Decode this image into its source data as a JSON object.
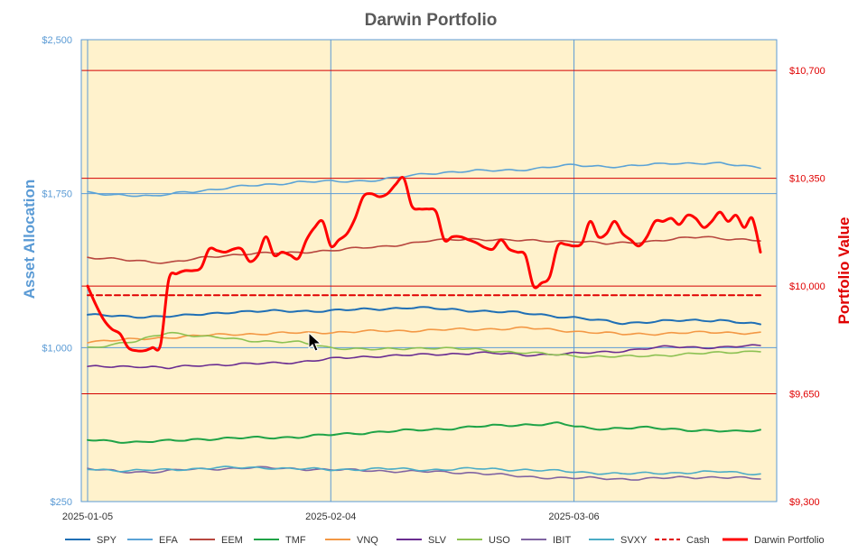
{
  "chart_data": {
    "type": "line",
    "title": "Darwin Portfolio",
    "ylabel": "Asset Allocation",
    "y2label": "Portfolio Value",
    "ylim": [
      250,
      2500
    ],
    "y2lim": [
      9300,
      10800
    ],
    "left_ticks": [
      "$2,500",
      "$1,750",
      "$1,000",
      "$250"
    ],
    "left_tick_values": [
      2500,
      1750,
      1000,
      250
    ],
    "right_ticks": [
      "$10,700",
      "$10,350",
      "$10,000",
      "$9,650",
      "$9,300"
    ],
    "right_tick_values": [
      10700,
      10350,
      10000,
      9650,
      9300
    ],
    "x_ticks": [
      "2025-01-05",
      "2025-02-04",
      "2025-03-06"
    ],
    "x_tick_index": [
      0,
      30,
      60
    ],
    "n_points": 84,
    "grid": true,
    "legend_position": "bottom",
    "series": [
      {
        "name": "SPY",
        "axis": "left",
        "color": "#1f6fb5",
        "dash": false,
        "width": 2,
        "keys": [
          [
            0,
            1160
          ],
          [
            5,
            1150
          ],
          [
            12,
            1155
          ],
          [
            18,
            1175
          ],
          [
            30,
            1180
          ],
          [
            40,
            1195
          ],
          [
            48,
            1180
          ],
          [
            55,
            1165
          ],
          [
            60,
            1145
          ],
          [
            66,
            1120
          ],
          [
            72,
            1130
          ],
          [
            78,
            1135
          ],
          [
            83,
            1110
          ]
        ]
      },
      {
        "name": "EFA",
        "axis": "left",
        "color": "#5ba3d6",
        "dash": false,
        "width": 1.6,
        "keys": [
          [
            0,
            1755
          ],
          [
            4,
            1745
          ],
          [
            8,
            1735
          ],
          [
            12,
            1760
          ],
          [
            16,
            1770
          ],
          [
            20,
            1790
          ],
          [
            26,
            1805
          ],
          [
            30,
            1810
          ],
          [
            36,
            1815
          ],
          [
            42,
            1850
          ],
          [
            48,
            1860
          ],
          [
            55,
            1870
          ],
          [
            60,
            1890
          ],
          [
            66,
            1880
          ],
          [
            72,
            1900
          ],
          [
            78,
            1895
          ],
          [
            83,
            1880
          ]
        ]
      },
      {
        "name": "EEM",
        "axis": "left",
        "color": "#b8473f",
        "dash": false,
        "width": 1.6,
        "keys": [
          [
            0,
            1440
          ],
          [
            5,
            1425
          ],
          [
            10,
            1415
          ],
          [
            15,
            1440
          ],
          [
            20,
            1460
          ],
          [
            25,
            1460
          ],
          [
            30,
            1475
          ],
          [
            36,
            1490
          ],
          [
            42,
            1520
          ],
          [
            48,
            1530
          ],
          [
            54,
            1520
          ],
          [
            60,
            1520
          ],
          [
            64,
            1505
          ],
          [
            70,
            1520
          ],
          [
            76,
            1540
          ],
          [
            83,
            1520
          ]
        ]
      },
      {
        "name": "TMF",
        "axis": "left",
        "color": "#1fa347",
        "dash": false,
        "width": 2,
        "keys": [
          [
            0,
            550
          ],
          [
            6,
            540
          ],
          [
            10,
            545
          ],
          [
            14,
            555
          ],
          [
            20,
            560
          ],
          [
            26,
            565
          ],
          [
            30,
            575
          ],
          [
            36,
            590
          ],
          [
            42,
            600
          ],
          [
            48,
            615
          ],
          [
            54,
            625
          ],
          [
            58,
            630
          ],
          [
            62,
            605
          ],
          [
            68,
            610
          ],
          [
            74,
            600
          ],
          [
            80,
            590
          ],
          [
            83,
            600
          ]
        ]
      },
      {
        "name": "VNQ",
        "axis": "left",
        "color": "#f39845",
        "dash": false,
        "width": 1.6,
        "keys": [
          [
            0,
            1030
          ],
          [
            6,
            1040
          ],
          [
            12,
            1055
          ],
          [
            18,
            1065
          ],
          [
            24,
            1070
          ],
          [
            30,
            1075
          ],
          [
            36,
            1080
          ],
          [
            42,
            1085
          ],
          [
            48,
            1090
          ],
          [
            54,
            1095
          ],
          [
            60,
            1080
          ],
          [
            66,
            1065
          ],
          [
            72,
            1070
          ],
          [
            78,
            1075
          ],
          [
            83,
            1070
          ]
        ]
      },
      {
        "name": "SLV",
        "axis": "left",
        "color": "#6a2d91",
        "dash": false,
        "width": 1.6,
        "keys": [
          [
            0,
            905
          ],
          [
            6,
            910
          ],
          [
            10,
            900
          ],
          [
            14,
            915
          ],
          [
            20,
            920
          ],
          [
            26,
            930
          ],
          [
            30,
            945
          ],
          [
            36,
            960
          ],
          [
            42,
            965
          ],
          [
            48,
            975
          ],
          [
            54,
            965
          ],
          [
            60,
            970
          ],
          [
            66,
            985
          ],
          [
            72,
            1005
          ],
          [
            78,
            1000
          ],
          [
            83,
            1010
          ]
        ]
      },
      {
        "name": "USO",
        "axis": "left",
        "color": "#8cc152",
        "dash": false,
        "width": 1.6,
        "keys": [
          [
            0,
            1000
          ],
          [
            6,
            1030
          ],
          [
            10,
            1075
          ],
          [
            14,
            1055
          ],
          [
            20,
            1035
          ],
          [
            26,
            1025
          ],
          [
            30,
            1000
          ],
          [
            36,
            990
          ],
          [
            42,
            1000
          ],
          [
            48,
            990
          ],
          [
            54,
            975
          ],
          [
            60,
            960
          ],
          [
            66,
            955
          ],
          [
            72,
            965
          ],
          [
            78,
            975
          ],
          [
            83,
            985
          ]
        ]
      },
      {
        "name": "IBIT",
        "axis": "left",
        "color": "#8064a2",
        "dash": false,
        "width": 1.6,
        "keys": [
          [
            0,
            410
          ],
          [
            4,
            395
          ],
          [
            8,
            395
          ],
          [
            12,
            405
          ],
          [
            16,
            410
          ],
          [
            20,
            415
          ],
          [
            26,
            410
          ],
          [
            30,
            405
          ],
          [
            36,
            400
          ],
          [
            42,
            395
          ],
          [
            48,
            390
          ],
          [
            54,
            370
          ],
          [
            60,
            365
          ],
          [
            66,
            360
          ],
          [
            72,
            365
          ],
          [
            78,
            370
          ],
          [
            83,
            360
          ]
        ]
      },
      {
        "name": "SVXY",
        "axis": "left",
        "color": "#4bacc6",
        "dash": false,
        "width": 1.6,
        "keys": [
          [
            0,
            410
          ],
          [
            5,
            400
          ],
          [
            10,
            405
          ],
          [
            16,
            415
          ],
          [
            22,
            415
          ],
          [
            30,
            405
          ],
          [
            36,
            410
          ],
          [
            42,
            405
          ],
          [
            48,
            410
          ],
          [
            54,
            405
          ],
          [
            60,
            395
          ],
          [
            66,
            385
          ],
          [
            72,
            390
          ],
          [
            78,
            395
          ],
          [
            83,
            385
          ]
        ]
      },
      {
        "name": "Cash",
        "axis": "right",
        "color": "#e00000",
        "dash": true,
        "width": 2,
        "keys": [
          [
            0,
            9970
          ],
          [
            83,
            9970
          ]
        ]
      },
      {
        "name": "Darwin Portfolio",
        "axis": "right",
        "color": "#ff0000",
        "dash": false,
        "width": 3,
        "keys": [
          [
            0,
            10000
          ],
          [
            1,
            9940
          ],
          [
            2,
            9890
          ],
          [
            3,
            9860
          ],
          [
            4,
            9845
          ],
          [
            5,
            9800
          ],
          [
            6,
            9790
          ],
          [
            7,
            9790
          ],
          [
            8,
            9800
          ],
          [
            9,
            9810
          ],
          [
            10,
            10020
          ],
          [
            11,
            10040
          ],
          [
            12,
            10050
          ],
          [
            13,
            10050
          ],
          [
            14,
            10060
          ],
          [
            15,
            10120
          ],
          [
            16,
            10115
          ],
          [
            17,
            10110
          ],
          [
            18,
            10120
          ],
          [
            19,
            10120
          ],
          [
            20,
            10080
          ],
          [
            21,
            10100
          ],
          [
            22,
            10160
          ],
          [
            23,
            10100
          ],
          [
            24,
            10110
          ],
          [
            25,
            10100
          ],
          [
            26,
            10090
          ],
          [
            27,
            10150
          ],
          [
            28,
            10190
          ],
          [
            29,
            10210
          ],
          [
            30,
            10130
          ],
          [
            31,
            10150
          ],
          [
            32,
            10170
          ],
          [
            33,
            10220
          ],
          [
            34,
            10290
          ],
          [
            35,
            10300
          ],
          [
            36,
            10290
          ],
          [
            37,
            10300
          ],
          [
            38,
            10330
          ],
          [
            39,
            10350
          ],
          [
            40,
            10260
          ],
          [
            41,
            10250
          ],
          [
            42,
            10250
          ],
          [
            43,
            10240
          ],
          [
            44,
            10150
          ],
          [
            45,
            10160
          ],
          [
            46,
            10160
          ],
          [
            47,
            10150
          ],
          [
            48,
            10140
          ],
          [
            49,
            10125
          ],
          [
            50,
            10120
          ],
          [
            51,
            10150
          ],
          [
            52,
            10120
          ],
          [
            53,
            10110
          ],
          [
            54,
            10100
          ],
          [
            55,
            10000
          ],
          [
            56,
            10010
          ],
          [
            57,
            10030
          ],
          [
            58,
            10130
          ],
          [
            59,
            10135
          ],
          [
            60,
            10130
          ],
          [
            61,
            10140
          ],
          [
            62,
            10210
          ],
          [
            63,
            10160
          ],
          [
            64,
            10170
          ],
          [
            65,
            10210
          ],
          [
            66,
            10170
          ],
          [
            67,
            10150
          ],
          [
            68,
            10130
          ],
          [
            69,
            10160
          ],
          [
            70,
            10210
          ],
          [
            71,
            10210
          ],
          [
            72,
            10220
          ],
          [
            73,
            10200
          ],
          [
            74,
            10230
          ],
          [
            75,
            10220
          ],
          [
            76,
            10190
          ],
          [
            77,
            10210
          ],
          [
            78,
            10240
          ],
          [
            79,
            10210
          ],
          [
            80,
            10230
          ],
          [
            81,
            10190
          ],
          [
            82,
            10220
          ],
          [
            83,
            10110
          ]
        ]
      }
    ]
  }
}
